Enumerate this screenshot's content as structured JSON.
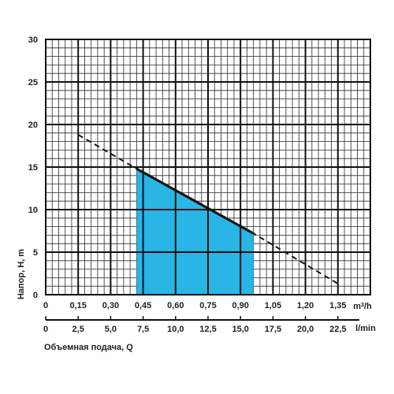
{
  "chart_data": {
    "type": "line",
    "x_primary": {
      "unit_base": "m",
      "unit_sup": "3",
      "unit_tail": "/h",
      "ticks": [
        "0",
        "0,15",
        "0,30",
        "0,45",
        "0,60",
        "0,75",
        "0,90",
        "1,05",
        "1,20",
        "1,35"
      ],
      "range": [
        0,
        1.5
      ]
    },
    "x_secondary": {
      "unit": "l/min",
      "ticks": [
        "0",
        "2,5",
        "5,0",
        "7,5",
        "10,0",
        "12,5",
        "15,0",
        "17,5",
        "20,0",
        "22,5"
      ],
      "range": [
        0,
        25
      ]
    },
    "xlabel": "Объемная подача, Q",
    "ylabel": "Напор, Н, m",
    "y": {
      "ticks": [
        "0",
        "5",
        "10",
        "15",
        "20",
        "25",
        "30"
      ],
      "range": [
        0,
        30
      ]
    },
    "grid": true,
    "series": [
      {
        "style": "dashed",
        "color": "#1a1a1a",
        "x": [
          0.15,
          0.42,
          0.96,
          1.35
        ],
        "y": [
          18.8,
          14.8,
          7.2,
          1.3
        ]
      },
      {
        "style": "solid",
        "color": "#111111",
        "x": [
          0.42,
          0.96
        ],
        "y": [
          14.8,
          7.2
        ]
      }
    ],
    "operating_area": {
      "color": "#29b5e6",
      "x_from": 0.42,
      "x_to": 0.96,
      "y_top_left": 14.8,
      "y_top_right": 7.2
    }
  }
}
